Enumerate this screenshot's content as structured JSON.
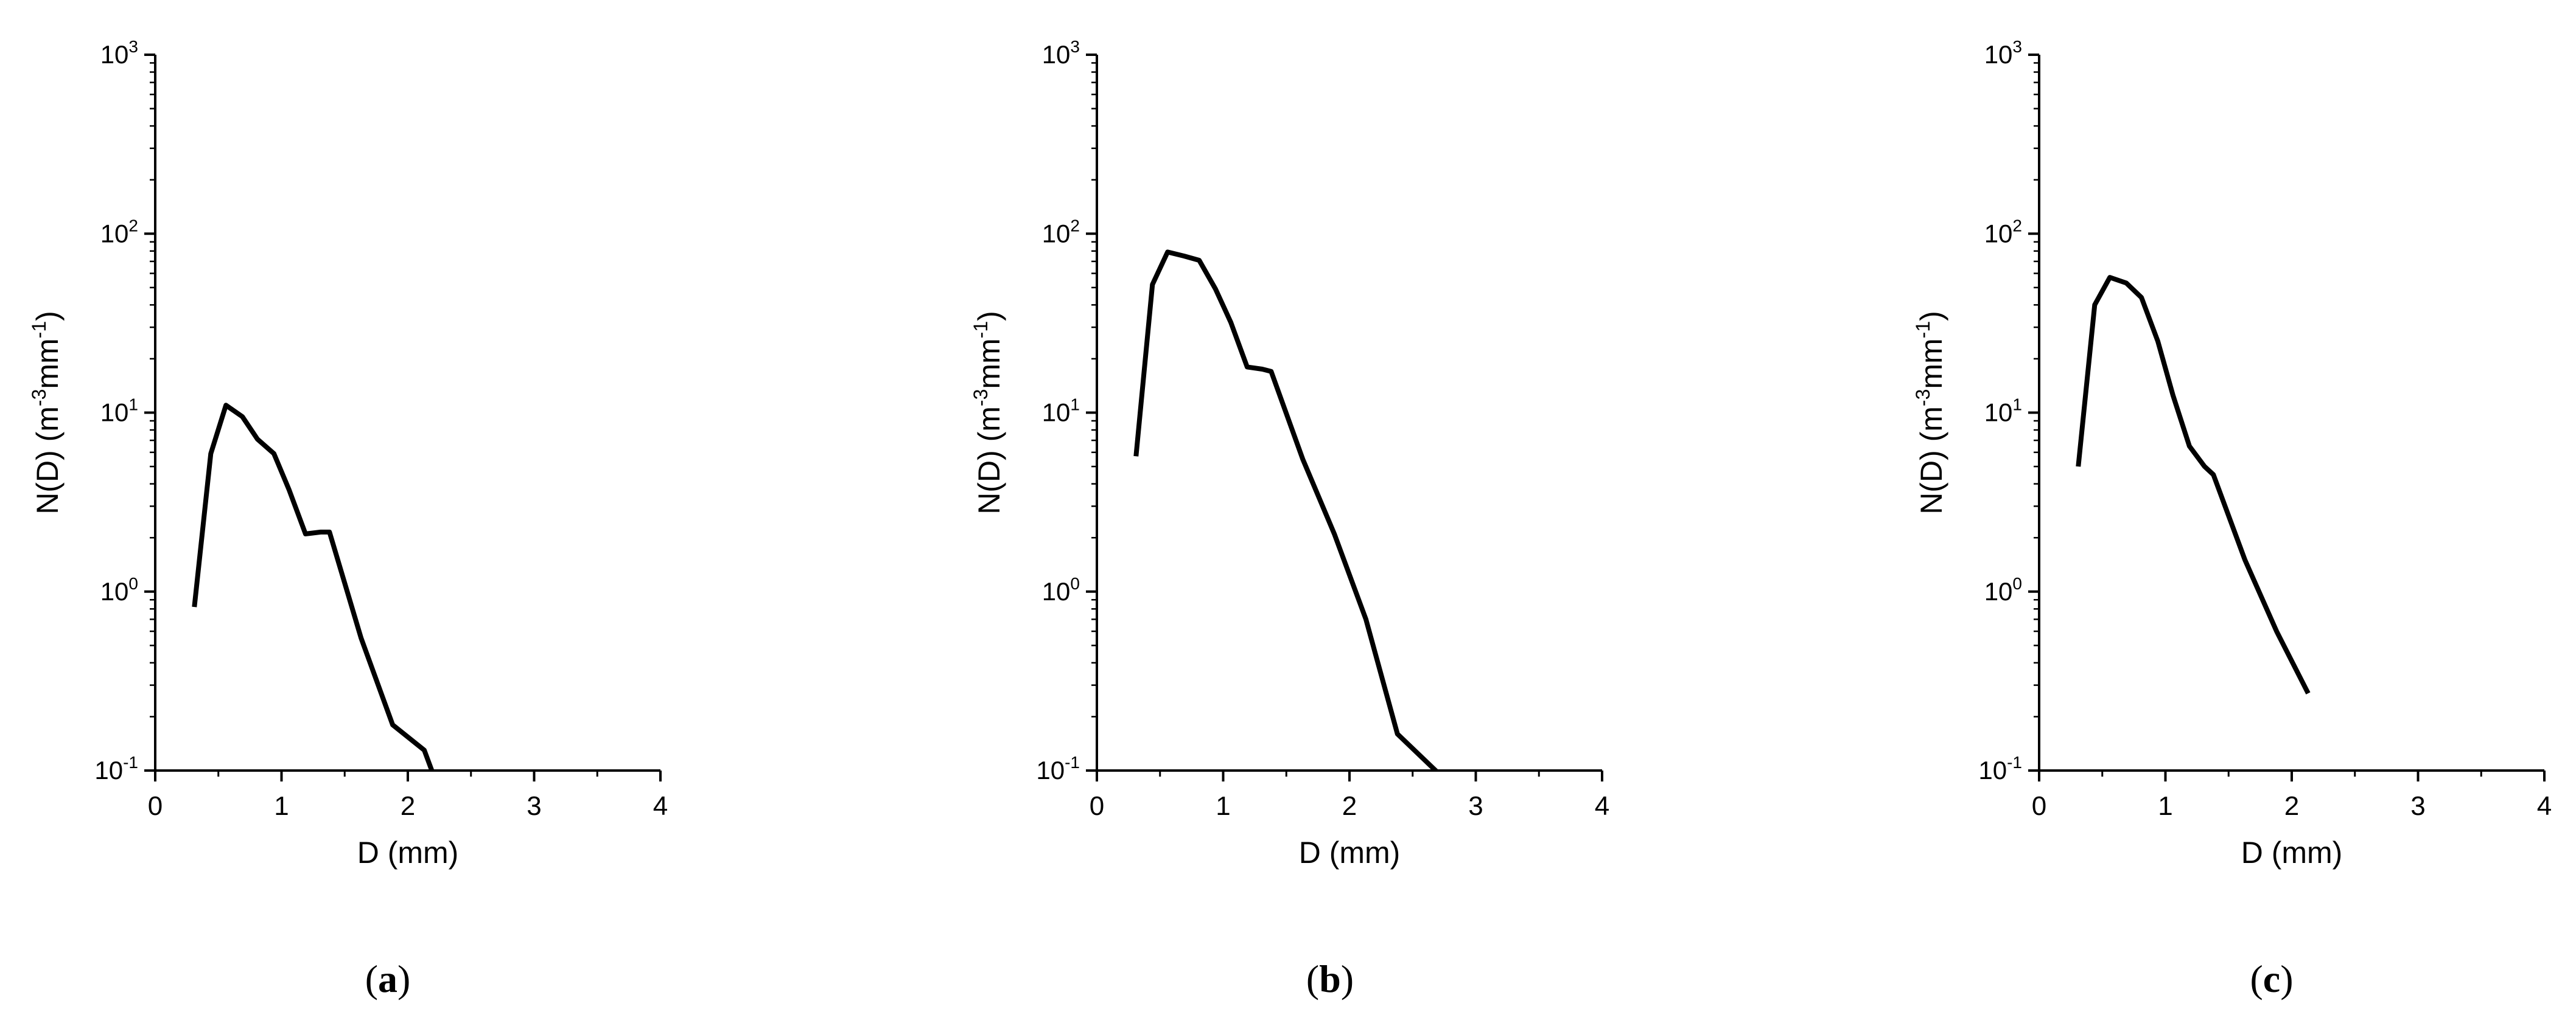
{
  "chart_data": [
    {
      "type": "line",
      "panel_label": "a",
      "xlabel": "D (mm)",
      "ylabel_parts": [
        "N(D) (m",
        "-3",
        "mm",
        "-1",
        ")"
      ],
      "xlim": [
        0,
        4
      ],
      "ylim": [
        0.1,
        1000
      ],
      "yscale": "log",
      "xticks": [
        0,
        1,
        2,
        3,
        4
      ],
      "yticks": [
        {
          "base": "10",
          "exp": "-1",
          "value": 0.1
        },
        {
          "base": "10",
          "exp": "0",
          "value": 1
        },
        {
          "base": "10",
          "exp": "1",
          "value": 10
        },
        {
          "base": "10",
          "exp": "2",
          "value": 100
        },
        {
          "base": "10",
          "exp": "3",
          "value": 1000
        }
      ],
      "grid": false,
      "line_color": "#000000",
      "series": [
        {
          "x": [
            0.31,
            0.44,
            0.56,
            0.69,
            0.81,
            0.94,
            1.06,
            1.19,
            1.31,
            1.38,
            1.63,
            1.88,
            2.13,
            2.19
          ],
          "y": [
            0.82,
            5.9,
            11.0,
            9.5,
            7.1,
            5.9,
            3.7,
            2.1,
            2.15,
            2.15,
            0.55,
            0.18,
            0.13,
            0.1
          ]
        }
      ]
    },
    {
      "type": "line",
      "panel_label": "b",
      "xlabel": "D (mm)",
      "ylabel_parts": [
        "N(D) (m",
        "-3",
        "mm",
        "-1",
        ")"
      ],
      "xlim": [
        0,
        4
      ],
      "ylim": [
        0.1,
        1000
      ],
      "yscale": "log",
      "xticks": [
        0,
        1,
        2,
        3,
        4
      ],
      "yticks": [
        {
          "base": "10",
          "exp": "-1",
          "value": 0.1
        },
        {
          "base": "10",
          "exp": "0",
          "value": 1
        },
        {
          "base": "10",
          "exp": "1",
          "value": 10
        },
        {
          "base": "10",
          "exp": "2",
          "value": 100
        },
        {
          "base": "10",
          "exp": "3",
          "value": 1000
        }
      ],
      "grid": false,
      "line_color": "#000000",
      "series": [
        {
          "x": [
            0.31,
            0.44,
            0.56,
            0.69,
            0.81,
            0.94,
            1.06,
            1.19,
            1.31,
            1.38,
            1.63,
            1.88,
            2.13,
            2.38,
            2.75
          ],
          "y": [
            5.7,
            52.0,
            79.0,
            75.0,
            71.0,
            49.0,
            32.0,
            18.0,
            17.5,
            17.0,
            5.5,
            2.1,
            0.7,
            0.16,
            0.09
          ]
        }
      ]
    },
    {
      "type": "line",
      "panel_label": "c",
      "xlabel": "D (mm)",
      "ylabel_parts": [
        "N(D) (m",
        "-3",
        "mm",
        "-1",
        ")"
      ],
      "xlim": [
        0,
        4
      ],
      "ylim": [
        0.1,
        1000
      ],
      "yscale": "log",
      "xticks": [
        0,
        1,
        2,
        3,
        4
      ],
      "yticks": [
        {
          "base": "10",
          "exp": "-1",
          "value": 0.1
        },
        {
          "base": "10",
          "exp": "0",
          "value": 1
        },
        {
          "base": "10",
          "exp": "1",
          "value": 10
        },
        {
          "base": "10",
          "exp": "2",
          "value": 100
        },
        {
          "base": "10",
          "exp": "3",
          "value": 1000
        }
      ],
      "grid": false,
      "line_color": "#000000",
      "series": [
        {
          "x": [
            0.31,
            0.44,
            0.56,
            0.69,
            0.81,
            0.94,
            1.06,
            1.19,
            1.31,
            1.38,
            1.63,
            1.88,
            2.13
          ],
          "y": [
            5.0,
            40.0,
            57.0,
            53.0,
            44.0,
            25.0,
            12.5,
            6.5,
            5.0,
            4.5,
            1.5,
            0.6,
            0.27
          ]
        }
      ]
    }
  ]
}
